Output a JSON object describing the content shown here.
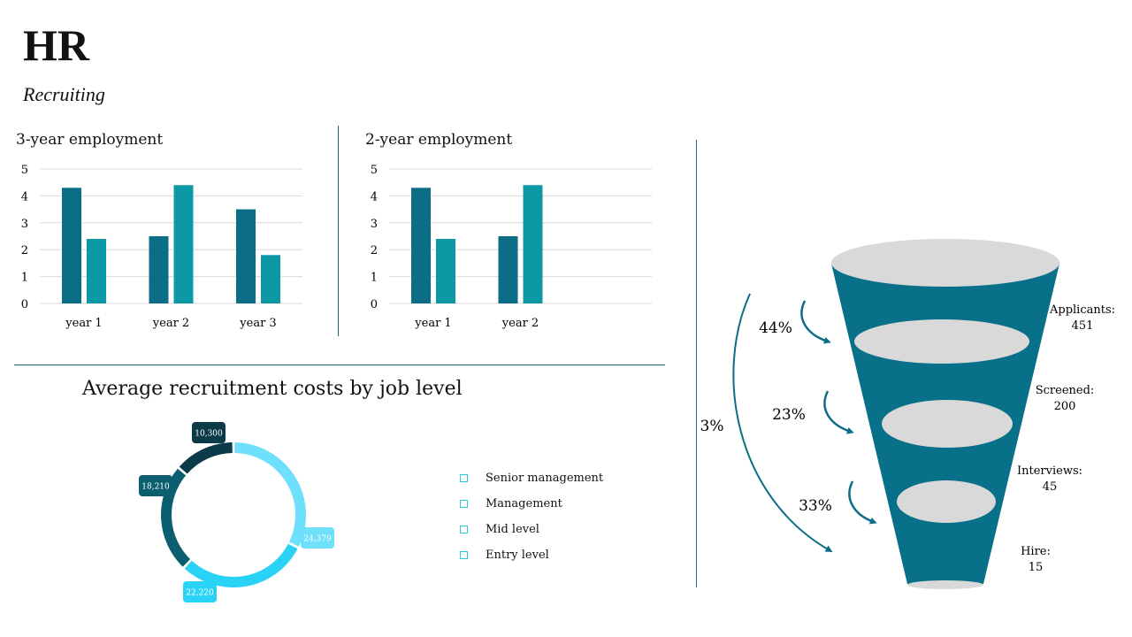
{
  "header": {
    "title": "HR",
    "subtitle": "Recruiting"
  },
  "colors": {
    "dark_teal": "#0b6e86",
    "teal": "#0d98a6",
    "gridline": "#d9d9d9",
    "funnel": "#087089",
    "ellipse": "#d9d9d9"
  },
  "chart_data": [
    {
      "type": "bar",
      "title": "3-year employment",
      "categories": [
        "year 1",
        "year 2",
        "year 3"
      ],
      "series": [
        {
          "values": [
            4.3,
            2.5,
            3.5
          ]
        },
        {
          "values": [
            2.4,
            4.4,
            1.8
          ]
        }
      ],
      "ylim": [
        0,
        5
      ],
      "yticks": [
        "0",
        "1",
        "2",
        "3",
        "4",
        "5"
      ],
      "grid": true
    },
    {
      "type": "bar",
      "title": "2-year employment",
      "categories": [
        "year 1",
        "year 2"
      ],
      "series": [
        {
          "values": [
            4.3,
            2.5
          ]
        },
        {
          "values": [
            2.4,
            4.4
          ]
        }
      ],
      "ylim": [
        0,
        5
      ],
      "yticks": [
        "0",
        "1",
        "2",
        "3",
        "4",
        "5"
      ],
      "grid": true
    },
    {
      "type": "pie",
      "title": "Average recruitment costs by job level",
      "donut": true,
      "categories": [
        "Senior management",
        "Management",
        "Mid level",
        "Entry level"
      ],
      "values": [
        10300,
        18210,
        22220,
        24379
      ],
      "value_labels": [
        "10,300",
        "18,210",
        "22,220",
        "24,379"
      ],
      "colors": [
        "#0b3a49",
        "#0b5e70",
        "#2ad3f5",
        "#6fe0fb"
      ],
      "legend": "right"
    },
    {
      "type": "funnel",
      "stages": [
        {
          "label": "Applicants:",
          "value": "451"
        },
        {
          "label": "Screened:",
          "value": "200"
        },
        {
          "label": "Interviews:",
          "value": "45"
        },
        {
          "label": "Hire:",
          "value": "15"
        }
      ],
      "step_rates": [
        "44%",
        "23%",
        "33%"
      ],
      "overall_rate": "3%"
    }
  ]
}
